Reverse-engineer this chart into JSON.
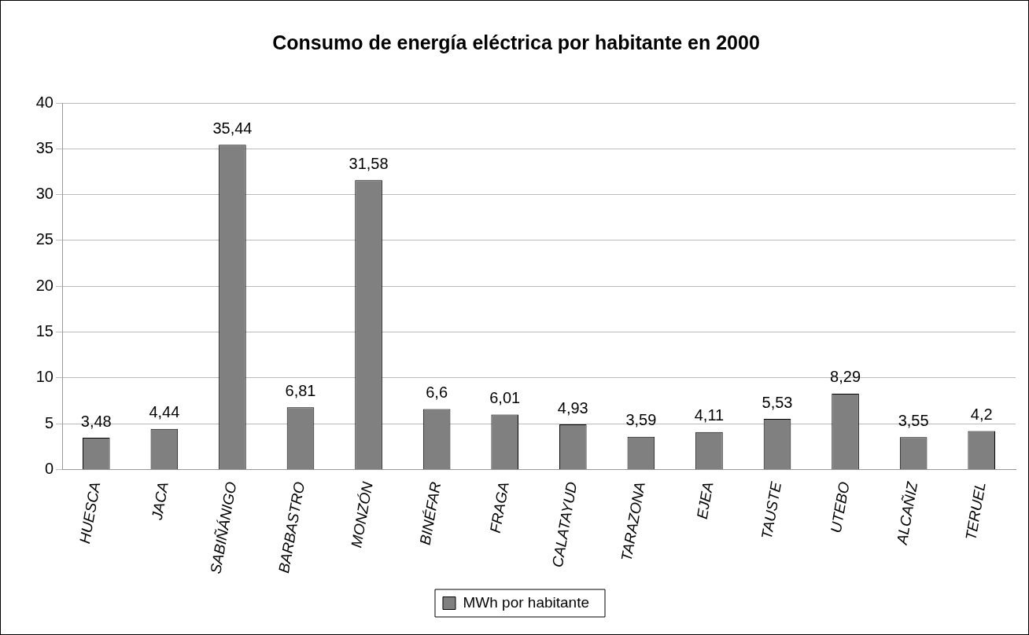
{
  "chart_data": {
    "type": "bar",
    "title": "Consumo de energía eléctrica por habitante en 2000",
    "categories": [
      "HUESCA",
      "JACA",
      "SABIÑÁNIGO",
      "BARBASTRO",
      "MONZÓN",
      "BINÉFAR",
      "FRAGA",
      "CALATAYUD",
      "TARAZONA",
      "EJEA",
      "TAUSTE",
      "UTEBO",
      "ALCAÑIZ",
      "TERUEL"
    ],
    "series": [
      {
        "name": "MWh por habitante",
        "color": "#808080",
        "values": [
          3.48,
          4.44,
          35.44,
          6.81,
          31.58,
          6.6,
          6.01,
          4.93,
          3.59,
          4.11,
          5.53,
          8.29,
          3.55,
          4.2
        ],
        "value_labels": [
          "3,48",
          "4,44",
          "35,44",
          "6,81",
          "31,58",
          "6,6",
          "6,01",
          "4,93",
          "3,59",
          "4,11",
          "5,53",
          "8,29",
          "3,55",
          "4,2"
        ]
      }
    ],
    "ylim": [
      0,
      40
    ],
    "yticks": [
      0,
      5,
      10,
      15,
      20,
      25,
      30,
      35,
      40
    ],
    "grid": "y",
    "legend": "bottom"
  }
}
